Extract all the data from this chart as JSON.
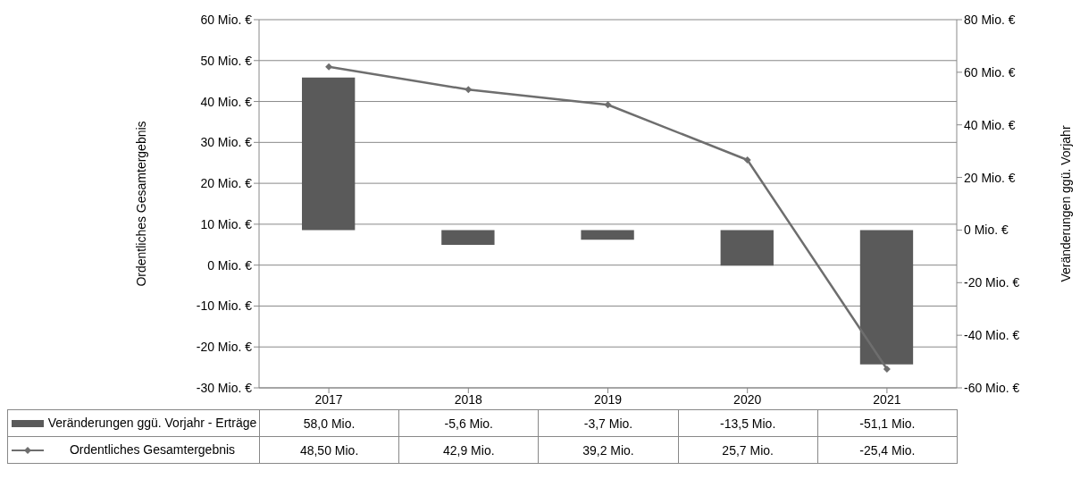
{
  "chart_data": {
    "type": "bar",
    "categories": [
      "2017",
      "2018",
      "2019",
      "2020",
      "2021"
    ],
    "ylabel": "Ordentliches Gesamtergebnis",
    "y2label": "Veränderungen ggü. Vorjahr",
    "ylim": [
      -30,
      60
    ],
    "yticks": [
      {
        "value": -30,
        "label": "-30 Mio. €"
      },
      {
        "value": -20,
        "label": "-20 Mio. €"
      },
      {
        "value": -10,
        "label": "-10 Mio. €"
      },
      {
        "value": 0,
        "label": "0 Mio. €"
      },
      {
        "value": 10,
        "label": "10 Mio. €"
      },
      {
        "value": 20,
        "label": "20 Mio. €"
      },
      {
        "value": 30,
        "label": "30 Mio. €"
      },
      {
        "value": 40,
        "label": "40 Mio. €"
      },
      {
        "value": 50,
        "label": "50 Mio. €"
      },
      {
        "value": 60,
        "label": "60 Mio. €"
      }
    ],
    "y2lim": [
      -60,
      80
    ],
    "y2ticks": [
      {
        "value": -60,
        "label": "-60 Mio. €"
      },
      {
        "value": -40,
        "label": "-40 Mio. €"
      },
      {
        "value": -20,
        "label": "-20 Mio. €"
      },
      {
        "value": 0,
        "label": "0 Mio. €"
      },
      {
        "value": 20,
        "label": "20 Mio. €"
      },
      {
        "value": 40,
        "label": "40 Mio. €"
      },
      {
        "value": 60,
        "label": "60 Mio. €"
      },
      {
        "value": 80,
        "label": "80 Mio. €"
      }
    ],
    "series": [
      {
        "name": "Veränderungen ggü. Vorjahr - Erträge",
        "axis": "y2",
        "color": "#5a5a5a",
        "values": [
          58.0,
          -5.6,
          -3.7,
          -13.5,
          -51.1
        ],
        "value_labels": [
          "58,0 Mio.",
          "-5,6 Mio.",
          "-3,7 Mio.",
          "-13,5 Mio.",
          "-51,1 Mio."
        ]
      },
      {
        "name": "Ordentliches Gesamtergebnis",
        "type": "line",
        "color": "#6e6e6e",
        "values": [
          48.5,
          42.9,
          39.2,
          25.7,
          -25.4
        ],
        "value_labels": [
          "48,50 Mio.",
          "42,9 Mio.",
          "39,2 Mio.",
          "25,7 Mio.",
          "-25,4 Mio."
        ],
        "marker": "diamond",
        "line_style": "solid"
      }
    ],
    "grid": "y",
    "legend": "bottom"
  }
}
